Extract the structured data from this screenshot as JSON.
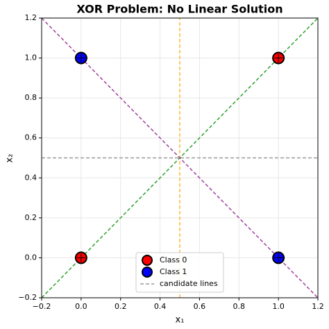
{
  "chart_data": {
    "type": "scatter",
    "title": "XOR Problem: No Linear Solution",
    "x_label": "x₁",
    "y_label": "x₂",
    "xlim": [
      -0.2,
      1.2
    ],
    "ylim": [
      -0.2,
      1.2
    ],
    "xticks": [
      {
        "value": -0.2,
        "label": "−0.2"
      },
      {
        "value": 0,
        "label": "0.0"
      },
      0.2,
      0.4,
      0.6,
      0.8,
      {
        "value": 1,
        "label": "1.0"
      },
      1.2
    ],
    "yticks": [
      {
        "value": -0.2,
        "label": "−0.2"
      },
      {
        "value": 0,
        "label": "0.0"
      },
      0.2,
      0.4,
      0.6,
      0.8,
      {
        "value": 1,
        "label": "1.0"
      },
      1.2
    ],
    "grid": true,
    "legend": "lower center",
    "series": [
      {
        "name": "Class 0",
        "color": "#ff0000",
        "x": [
          0,
          1
        ],
        "values": [
          0,
          1
        ]
      },
      {
        "name": "Class 1",
        "color": "#0000ff",
        "x": [
          0,
          1
        ],
        "values": [
          1,
          0
        ]
      }
    ],
    "lines": [
      {
        "name": "candidate lines",
        "color": "#999999",
        "x": [
          -0.2,
          1.2
        ],
        "values": [
          0.5,
          0.5
        ]
      },
      {
        "color": "#ffb732",
        "x": [
          0.5,
          0.5
        ],
        "values": [
          -0.2,
          1.2
        ]
      },
      {
        "color": "#2ca02c",
        "x": [
          -0.2,
          1.2
        ],
        "values": [
          -0.2,
          1.2
        ]
      },
      {
        "color": "#a040a0",
        "x": [
          -0.2,
          1.2
        ],
        "values": [
          1.2,
          -0.2
        ]
      }
    ]
  }
}
